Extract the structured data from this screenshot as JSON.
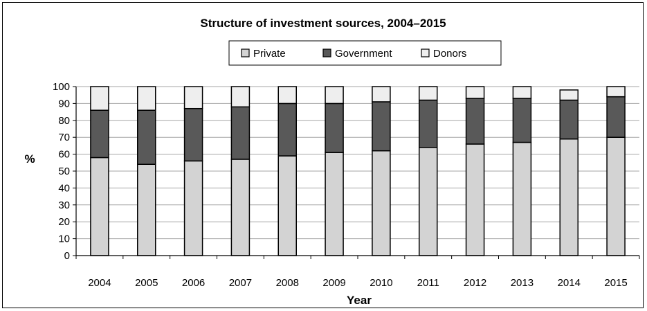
{
  "chart_data": {
    "type": "bar",
    "stacked": true,
    "title": "Structure of investment sources, 2004–2015",
    "xlabel": "Year",
    "ylabel": "%",
    "ylim": [
      0,
      100
    ],
    "yticks": [
      0,
      10,
      20,
      30,
      40,
      50,
      60,
      70,
      80,
      90,
      100
    ],
    "grid": true,
    "legend_position": "top",
    "categories": [
      "2004",
      "2005",
      "2006",
      "2007",
      "2008",
      "2009",
      "2010",
      "2011",
      "2012",
      "2013",
      "2014",
      "2015"
    ],
    "series": [
      {
        "name": "Private",
        "color": "#d3d3d3",
        "values": [
          58,
          54,
          56,
          57,
          59,
          61,
          62,
          64,
          66,
          67,
          69,
          70
        ]
      },
      {
        "name": "Government",
        "color": "#595959",
        "values": [
          28,
          32,
          31,
          31,
          31,
          29,
          29,
          28,
          27,
          26,
          23,
          24
        ]
      },
      {
        "name": "Donors",
        "color": "#eeeeee",
        "values": [
          14,
          14,
          13,
          12,
          10,
          10,
          9,
          8,
          7,
          7,
          6,
          6
        ]
      }
    ]
  }
}
